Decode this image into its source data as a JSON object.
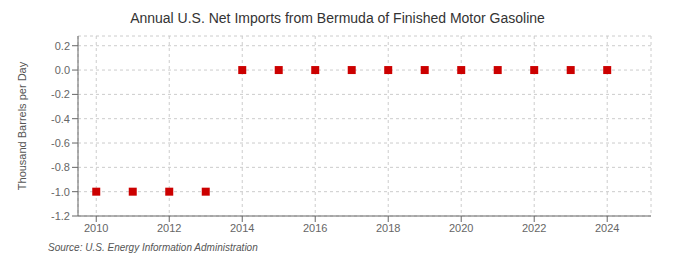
{
  "chart_data": {
    "type": "scatter",
    "title": "Annual U.S. Net Imports from Bermuda of Finished Motor Gasoline",
    "y_label": "Thousand Barrels per Day",
    "annotations": [
      "Source: U.S. Energy Information Administration"
    ],
    "x": [
      2010,
      2011,
      2012,
      2013,
      2014,
      2015,
      2016,
      2017,
      2018,
      2019,
      2020,
      2021,
      2022,
      2023,
      2024
    ],
    "values": [
      -1.0,
      -1.0,
      -1.0,
      -1.0,
      0.0,
      0.0,
      0.0,
      0.0,
      0.0,
      0.0,
      0.0,
      0.0,
      0.0,
      0.0,
      0.0
    ],
    "color": "#cc0000",
    "marker": "square",
    "xlim": [
      2009.5,
      2025.2
    ],
    "ylim": [
      -1.2,
      0.28
    ],
    "xticks": [
      2010,
      2012,
      2014,
      2016,
      2018,
      2020,
      2022,
      2024
    ],
    "yticks": [
      0.2,
      {
        "value": 0,
        "label": "0.0"
      },
      -0.2,
      -0.4,
      -0.6,
      -0.8,
      {
        "value": -1,
        "label": "-1.0"
      },
      -1.2
    ],
    "grid": true
  }
}
